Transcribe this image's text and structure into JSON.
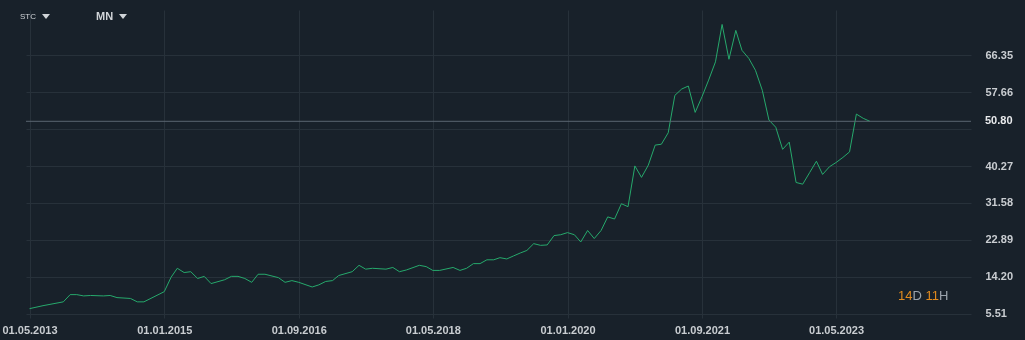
{
  "chart_data": {
    "type": "line",
    "annotations": [
      "STC",
      "MN",
      "14D 11H"
    ],
    "x": [
      "2013-05",
      "2013-07",
      "2013-10",
      "2013-11",
      "2013-12",
      "2014-01",
      "2014-02",
      "2014-04",
      "2014-05",
      "2014-06",
      "2014-08",
      "2014-09",
      "2014-10",
      "2015-01",
      "2015-02",
      "2015-03",
      "2015-04",
      "2015-05",
      "2015-06",
      "2015-07",
      "2015-08",
      "2015-10",
      "2015-11",
      "2015-12",
      "2016-01",
      "2016-02",
      "2016-03",
      "2016-04",
      "2016-06",
      "2016-07",
      "2016-08",
      "2016-09",
      "2016-11",
      "2016-12",
      "2017-01",
      "2017-02",
      "2017-03",
      "2017-05",
      "2017-06",
      "2017-07",
      "2017-08",
      "2017-10",
      "2017-11",
      "2017-12",
      "2018-01",
      "2018-03",
      "2018-04",
      "2018-05",
      "2018-06",
      "2018-08",
      "2018-09",
      "2018-10",
      "2018-11",
      "2018-12",
      "2019-01",
      "2019-02",
      "2019-03",
      "2019-04",
      "2019-05",
      "2019-06",
      "2019-07",
      "2019-08",
      "2019-09",
      "2019-10",
      "2019-11",
      "2019-12",
      "2020-01",
      "2020-02",
      "2020-03",
      "2020-04",
      "2020-05",
      "2020-06",
      "2020-07",
      "2020-08",
      "2020-09",
      "2020-10",
      "2020-11",
      "2020-12",
      "2021-01",
      "2021-02",
      "2021-03",
      "2021-04",
      "2021-05",
      "2021-06",
      "2021-07",
      "2021-08",
      "2021-09",
      "2021-10",
      "2021-11",
      "2021-12",
      "2022-01",
      "2022-02",
      "2022-03",
      "2022-04",
      "2022-05",
      "2022-06",
      "2022-07",
      "2022-08",
      "2022-09",
      "2022-10",
      "2022-11",
      "2022-12",
      "2023-01",
      "2023-02",
      "2023-03",
      "2023-04",
      "2023-05",
      "2023-06",
      "2023-07",
      "2023-08",
      "2023-09",
      "2023-10"
    ],
    "series": [
      {
        "color": "#26a96c",
        "values": [
          6.7,
          7.4,
          8.3,
          10.0,
          10.0,
          9.7,
          9.8,
          9.7,
          9.8,
          9.3,
          9.1,
          8.3,
          8.3,
          10.7,
          14.1,
          16.2,
          15.2,
          15.4,
          13.8,
          14.3,
          12.6,
          13.5,
          14.3,
          14.3,
          13.8,
          12.9,
          14.8,
          14.8,
          14.0,
          12.9,
          13.3,
          12.9,
          11.8,
          12.3,
          13.1,
          13.3,
          14.5,
          15.4,
          16.9,
          16.0,
          16.2,
          16.0,
          16.4,
          15.4,
          15.8,
          16.9,
          16.6,
          15.7,
          15.7,
          16.4,
          15.7,
          16.2,
          17.3,
          17.3,
          18.2,
          18.2,
          18.7,
          18.4,
          19.1,
          19.8,
          20.4,
          22.0,
          21.6,
          21.7,
          23.9,
          24.1,
          24.6,
          24.1,
          22.4,
          25.1,
          23.2,
          25.1,
          28.3,
          27.8,
          31.4,
          30.7,
          40.3,
          37.6,
          40.5,
          45.2,
          45.4,
          48.1,
          56.9,
          58.4,
          59.1,
          52.9,
          56.6,
          60.5,
          64.8,
          73.6,
          65.4,
          72.2,
          67.5,
          65.6,
          62.8,
          58.1,
          51.1,
          49.4,
          44.2,
          45.9,
          36.4,
          36.0,
          38.7,
          41.4,
          38.3,
          40.1,
          41.1,
          42.3,
          43.6,
          52.5,
          51.5,
          50.8
        ]
      }
    ],
    "xlim": [
      "2013-04-15",
      "2025-01-01"
    ],
    "xticks": [
      {
        "value": "2013-05-01",
        "label": "01.05.2013"
      },
      {
        "value": "2015-01-01",
        "label": "01.01.2015"
      },
      {
        "value": "2016-09-01",
        "label": "01.09.2016"
      },
      {
        "value": "2018-05-01",
        "label": "01.05.2018"
      },
      {
        "value": "2020-01-01",
        "label": "01.01.2020"
      },
      {
        "value": "2021-09-01",
        "label": "01.09.2021"
      },
      {
        "value": "2023-05-01",
        "label": "01.05.2023"
      }
    ],
    "ylim": [
      4.5,
      77
    ],
    "yticks": [
      5.51,
      {
        "value": 14.2,
        "label": "14.20"
      },
      22.89,
      31.58,
      40.27,
      {
        "value": 48.97,
        "label": null
      },
      57.66,
      66.35
    ],
    "ref_lines": [
      {
        "axis": "y",
        "value": 50.8,
        "label": "50.80",
        "color": "#5b6671"
      }
    ],
    "grid": true,
    "marker": "none",
    "line_style": "solid"
  }
}
